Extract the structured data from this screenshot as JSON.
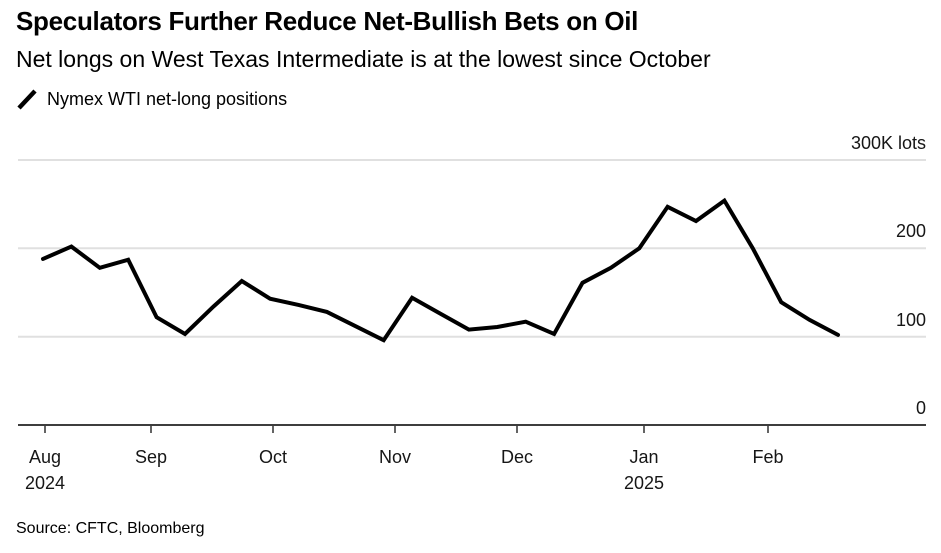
{
  "header": {
    "title": "Speculators Further Reduce Net-Bullish Bets on Oil",
    "subtitle": "Net longs on West Texas Intermediate is at the lowest since October"
  },
  "legend": {
    "series_label": "Nymex WTI net-long positions"
  },
  "source": "Source: CFTC, Bloomberg",
  "colors": {
    "line": "#000000",
    "gridline": "#e0e0e0",
    "axis": "#3d3d3d",
    "text": "#161616"
  },
  "chart_data": {
    "type": "line",
    "title": "Nymex WTI net-long positions",
    "y_unit": "K lots",
    "x_frequency": "weekly",
    "x_range": [
      "Aug 2024",
      "mid-Feb 2025"
    ],
    "ylim": [
      0,
      334
    ],
    "grid": "horizontal",
    "legend_position": "top-left",
    "yticks": [
      {
        "value": 300,
        "label": "300K lots"
      },
      {
        "value": 200,
        "label": "200"
      },
      {
        "value": 100,
        "label": "100"
      },
      {
        "value": 0,
        "label": "0"
      }
    ],
    "xticks": [
      {
        "label": "Aug",
        "sub": "2024"
      },
      {
        "label": "Sep"
      },
      {
        "label": "Oct"
      },
      {
        "label": "Nov"
      },
      {
        "label": "Dec"
      },
      {
        "label": "Jan",
        "sub": "2025"
      },
      {
        "label": "Feb"
      }
    ],
    "series": [
      {
        "name": "Nymex WTI net-long positions",
        "values": [
          188,
          202,
          178,
          187,
          122,
          103,
          134,
          163,
          143,
          136,
          128,
          112,
          96,
          144,
          126,
          108,
          111,
          117,
          103,
          161,
          178,
          200,
          247,
          231,
          254,
          200,
          139,
          119,
          102
        ]
      }
    ]
  }
}
